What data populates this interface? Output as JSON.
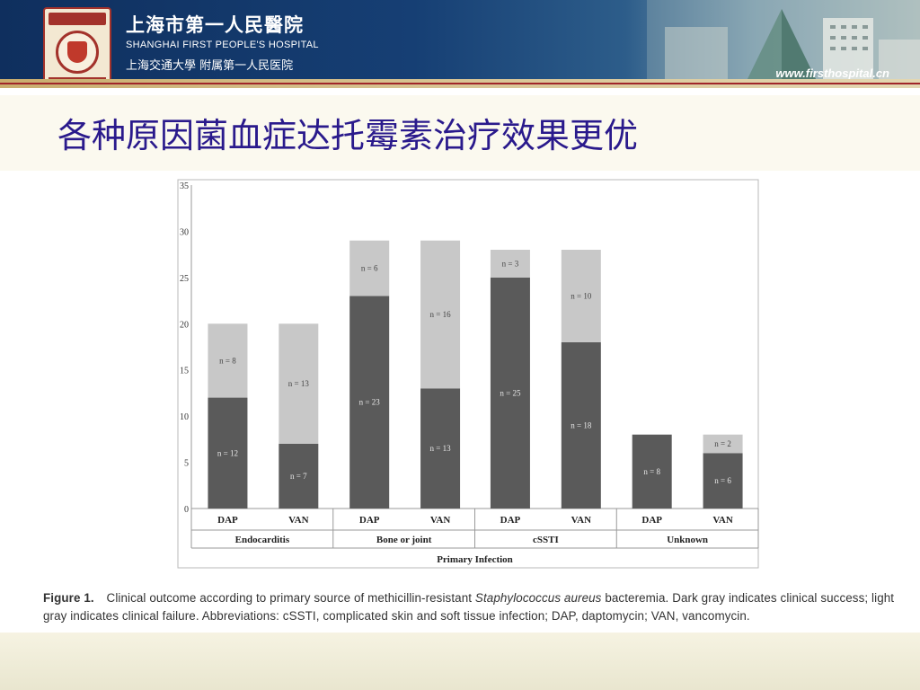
{
  "header": {
    "hospital_name_cn": "上海市第一人民醫院",
    "hospital_name_en": "SHANGHAI FIRST PEOPLE'S HOSPITAL",
    "affiliation": "上海交通大學 附属第一人民医院",
    "website": "www.firsthospital.cn",
    "logo_year": "1864"
  },
  "slide": {
    "title": "各种原因菌血症达托霉素治疗效果更优"
  },
  "caption": {
    "label": "Figure 1.",
    "text_part1": "Clinical outcome according to primary source of methicillin-resistant",
    "italic": "Staphylococcus aureus",
    "text_part2": "bacteremia. Dark gray indicates clinical success; light gray indicates clinical failure. Abbreviations: cSSTI, complicated skin and soft tissue infection; DAP, daptomycin; VAN, vancomycin."
  },
  "colors": {
    "success": "#5a5a5a",
    "failure": "#c8c8c8",
    "title": "#2a1a8c"
  },
  "chart_data": {
    "type": "bar",
    "stacked": true,
    "xlabel": "Primary Infection",
    "ylabel": "",
    "ylim": [
      0,
      35
    ],
    "yticks": [
      0,
      5,
      10,
      15,
      20,
      25,
      30,
      35
    ],
    "grid": false,
    "categories": [
      "DAP",
      "VAN",
      "DAP",
      "VAN",
      "DAP",
      "VAN",
      "DAP",
      "VAN"
    ],
    "groups": [
      {
        "label": "Endocarditis",
        "members": [
          0,
          1
        ]
      },
      {
        "label": "Bone or joint",
        "members": [
          2,
          3
        ]
      },
      {
        "label": "cSSTI",
        "members": [
          4,
          5
        ]
      },
      {
        "label": "Unknown",
        "members": [
          6,
          7
        ]
      }
    ],
    "series": [
      {
        "key": "success",
        "values": [
          12,
          7,
          23,
          13,
          25,
          18,
          8,
          6
        ],
        "labels": [
          "n = 12",
          "n = 7",
          "n = 23",
          "n = 13",
          "n = 25",
          "n = 18",
          "n = 8",
          "n = 6"
        ]
      },
      {
        "key": "failure",
        "values": [
          8,
          13,
          6,
          16,
          3,
          10,
          0,
          2
        ],
        "labels": [
          "n = 8",
          "n = 13",
          "n = 6",
          "n = 16",
          "n = 3",
          "n = 10",
          "",
          "n = 2"
        ]
      }
    ]
  }
}
